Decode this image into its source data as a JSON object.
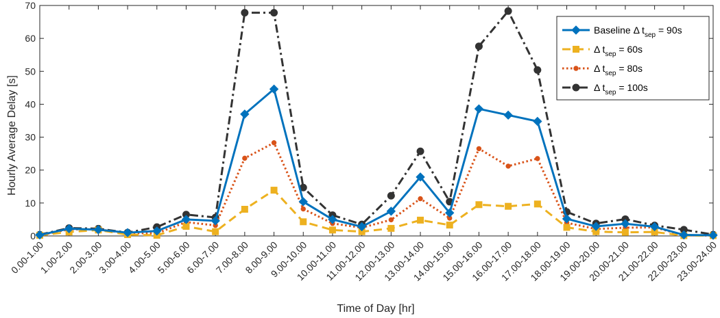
{
  "chart_data": {
    "type": "line",
    "xlabel": "Time of Day [hr]",
    "ylabel": "Hourly Average Delay [s]",
    "ylim": [
      0,
      70
    ],
    "yticks": [
      0,
      10,
      20,
      30,
      40,
      50,
      60,
      70
    ],
    "grid": false,
    "legend_position": "top-right",
    "categories": [
      "0.00-1.00",
      "1.00-2.00",
      "2.00-3.00",
      "3.00-4.00",
      "4.00-5.00",
      "5.00-6.00",
      "6.00-7.00",
      "7.00-8.00",
      "8.00-9.00",
      "9.00-10.00",
      "10.00-11.00",
      "11.00-12.00",
      "12.00-13.00",
      "13.00-14.00",
      "14.00-15.00",
      "15.00-16.00",
      "16.00-17.00",
      "17.00-18.00",
      "18.00-19.00",
      "19.00-20.00",
      "20.00-21.00",
      "21.00-22.00",
      "22.00-23.00",
      "23.00-24.00"
    ],
    "series": [
      {
        "legend": {
          "prefix": "Baseline Δ t",
          "sub": "sep",
          "suffix": " = 90s"
        },
        "color": "#0072BD",
        "dash": "solid",
        "marker": "diamond",
        "values": [
          0.3,
          2.2,
          1.9,
          1.0,
          1.5,
          5.0,
          4.6,
          37.0,
          44.6,
          10.4,
          5.0,
          2.8,
          7.5,
          17.9,
          7.0,
          38.6,
          36.7,
          34.8,
          5.2,
          2.9,
          3.7,
          2.8,
          0.3,
          0.2
        ]
      },
      {
        "legend": {
          "prefix": "Δ t",
          "sub": "sep",
          "suffix": " = 60s"
        },
        "color": "#EDB120",
        "dash": "dashed",
        "marker": "square",
        "values": [
          0.2,
          1.2,
          1.8,
          0.4,
          0.2,
          2.9,
          1.3,
          8.1,
          13.9,
          4.3,
          1.8,
          1.3,
          2.3,
          4.8,
          3.3,
          9.5,
          9.0,
          9.7,
          2.6,
          1.3,
          1.1,
          1.2,
          0.1,
          0.1
        ]
      },
      {
        "legend": {
          "prefix": "Δ t",
          "sub": "sep",
          "suffix": " = 80s"
        },
        "color": "#D95319",
        "dash": "dotted",
        "marker": "circle-small",
        "values": [
          0.2,
          2.0,
          2.0,
          0.8,
          0.8,
          4.2,
          3.2,
          23.6,
          28.3,
          8.2,
          3.8,
          2.5,
          4.9,
          11.3,
          5.4,
          26.5,
          21.2,
          23.5,
          4.0,
          2.1,
          2.5,
          2.6,
          0.2,
          0.1
        ]
      },
      {
        "legend": {
          "prefix": "Δ t",
          "sub": "sep",
          "suffix": " = 100s"
        },
        "color": "#333333",
        "dash": "dashdot",
        "marker": "circle",
        "values": [
          0.4,
          2.4,
          2.2,
          1.0,
          2.7,
          6.5,
          5.6,
          67.8,
          67.8,
          14.7,
          6.3,
          3.5,
          12.2,
          25.7,
          10.4,
          57.6,
          68.3,
          50.4,
          7.3,
          3.8,
          5.1,
          3.2,
          1.9,
          0.4
        ]
      }
    ]
  }
}
